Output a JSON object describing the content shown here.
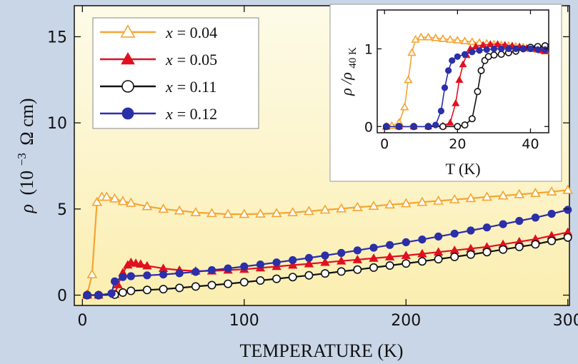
{
  "colors": {
    "background": "#c9d6e8",
    "plot_top": "#fdfbe8",
    "plot_bottom": "#fbeeb0",
    "orange": "#f5a431",
    "red": "#e01020",
    "black": "#111111",
    "blue": "#2b2fa8"
  },
  "chart_data": [
    {
      "type": "line",
      "xlabel": "TEMPERATURE (K)",
      "ylabel_parts": [
        "ρ",
        "(10",
        "−3",
        "Ω cm)"
      ],
      "xlim": [
        -5,
        301
      ],
      "ylim": [
        -0.6,
        16.8
      ],
      "xticks": [
        0,
        100,
        200,
        300
      ],
      "yticks": [
        0,
        5,
        10,
        15
      ],
      "legend_position": "top-left",
      "series": [
        {
          "name": "x = 0.04",
          "var": "x",
          "eq": "= 0.04",
          "color_key": "orange",
          "marker": "open-triangle",
          "x": [
            3,
            6,
            9,
            12,
            15,
            20,
            25,
            30,
            40,
            50,
            60,
            70,
            80,
            90,
            100,
            110,
            120,
            130,
            140,
            150,
            160,
            170,
            180,
            190,
            200,
            210,
            220,
            230,
            240,
            250,
            260,
            270,
            280,
            290,
            300
          ],
          "y": [
            0.05,
            1.2,
            5.4,
            5.7,
            5.7,
            5.6,
            5.45,
            5.35,
            5.15,
            5.0,
            4.9,
            4.8,
            4.75,
            4.7,
            4.7,
            4.72,
            4.75,
            4.8,
            4.87,
            4.95,
            5.02,
            5.1,
            5.17,
            5.25,
            5.32,
            5.4,
            5.47,
            5.55,
            5.62,
            5.7,
            5.77,
            5.85,
            5.92,
            6.0,
            6.1
          ]
        },
        {
          "name": "x = 0.05",
          "var": "x",
          "eq": "= 0.05",
          "color_key": "red",
          "marker": "filled-triangle",
          "x": [
            3,
            10,
            20,
            22,
            25,
            28,
            30,
            33,
            36,
            40,
            50,
            60,
            70,
            80,
            90,
            100,
            110,
            120,
            130,
            140,
            150,
            160,
            170,
            180,
            190,
            200,
            210,
            220,
            230,
            240,
            250,
            260,
            270,
            280,
            290,
            300
          ],
          "y": [
            0.0,
            0.0,
            0.05,
            0.6,
            1.3,
            1.75,
            1.9,
            1.85,
            1.8,
            1.7,
            1.55,
            1.45,
            1.4,
            1.4,
            1.45,
            1.5,
            1.58,
            1.66,
            1.74,
            1.82,
            1.9,
            1.98,
            2.06,
            2.14,
            2.22,
            2.3,
            2.4,
            2.5,
            2.6,
            2.7,
            2.8,
            2.95,
            3.1,
            3.25,
            3.45,
            3.65
          ]
        },
        {
          "name": "x = 0.11",
          "var": "x",
          "eq": "= 0.11",
          "color_key": "black",
          "marker": "open-circle",
          "x": [
            3,
            10,
            20,
            25,
            30,
            40,
            50,
            60,
            70,
            80,
            90,
            100,
            110,
            120,
            130,
            140,
            150,
            160,
            170,
            180,
            190,
            200,
            210,
            220,
            230,
            240,
            250,
            260,
            270,
            280,
            290,
            300
          ],
          "y": [
            0.0,
            0.0,
            0.03,
            0.15,
            0.25,
            0.3,
            0.35,
            0.42,
            0.5,
            0.58,
            0.66,
            0.75,
            0.85,
            0.95,
            1.05,
            1.15,
            1.26,
            1.37,
            1.48,
            1.6,
            1.72,
            1.84,
            1.96,
            2.09,
            2.22,
            2.36,
            2.5,
            2.65,
            2.8,
            2.95,
            3.15,
            3.35
          ]
        },
        {
          "name": "x = 0.12",
          "var": "x",
          "eq": "= 0.12",
          "color_key": "blue",
          "marker": "filled-circle",
          "x": [
            3,
            10,
            18,
            20,
            25,
            30,
            40,
            50,
            60,
            70,
            80,
            90,
            100,
            110,
            120,
            130,
            140,
            150,
            160,
            170,
            180,
            190,
            200,
            210,
            220,
            230,
            240,
            250,
            260,
            270,
            280,
            290,
            300
          ],
          "y": [
            0.0,
            0.0,
            0.1,
            0.8,
            1.05,
            1.1,
            1.15,
            1.2,
            1.27,
            1.35,
            1.45,
            1.55,
            1.66,
            1.78,
            1.9,
            2.03,
            2.16,
            2.3,
            2.45,
            2.6,
            2.75,
            2.91,
            3.07,
            3.23,
            3.4,
            3.57,
            3.75,
            3.93,
            4.12,
            4.31,
            4.5,
            4.72,
            4.95
          ]
        }
      ]
    },
    {
      "type": "line",
      "role": "inset",
      "xlabel": "T (K)",
      "ylabel_parts": [
        "ρ",
        "/ρ",
        "40 K"
      ],
      "xlim": [
        -2,
        45
      ],
      "ylim": [
        -0.08,
        1.5
      ],
      "xticks": [
        0,
        20,
        40
      ],
      "yticks": [
        0,
        1
      ],
      "series": [
        {
          "name": "x = 0.04",
          "color_key": "orange",
          "marker": "open-triangle",
          "x": [
            0.5,
            2,
            4,
            5.5,
            6.5,
            7.5,
            8.5,
            10,
            12,
            14,
            16,
            18,
            20,
            22,
            24,
            26,
            28,
            30,
            32,
            34,
            36,
            38,
            40,
            42,
            44
          ],
          "y": [
            0.0,
            0.01,
            0.05,
            0.25,
            0.6,
            0.95,
            1.12,
            1.15,
            1.15,
            1.14,
            1.13,
            1.12,
            1.11,
            1.1,
            1.09,
            1.08,
            1.07,
            1.06,
            1.05,
            1.04,
            1.03,
            1.02,
            1.0,
            0.99,
            0.97
          ]
        },
        {
          "name": "x = 0.05",
          "color_key": "red",
          "marker": "filled-triangle",
          "x": [
            0.5,
            4,
            8,
            12,
            16,
            18,
            19.5,
            20.5,
            21.5,
            22.5,
            23.5,
            25,
            27,
            29,
            31,
            33,
            35,
            37,
            39,
            41,
            43,
            44
          ],
          "y": [
            0.0,
            0.0,
            0.0,
            0.0,
            0.01,
            0.05,
            0.3,
            0.6,
            0.8,
            0.92,
            1.0,
            1.03,
            1.05,
            1.06,
            1.06,
            1.05,
            1.04,
            1.03,
            1.01,
            1.0,
            0.98,
            0.97
          ]
        },
        {
          "name": "x = 0.11",
          "color_key": "black",
          "marker": "open-circle",
          "x": [
            0.5,
            4,
            8,
            12,
            16,
            20,
            22,
            24,
            25.5,
            26.5,
            27.5,
            28.5,
            30,
            32,
            34,
            36,
            38,
            40,
            42,
            44
          ],
          "y": [
            0.0,
            0.0,
            0.0,
            0.0,
            0.0,
            0.0,
            0.02,
            0.1,
            0.45,
            0.72,
            0.85,
            0.9,
            0.92,
            0.93,
            0.95,
            0.97,
            1.0,
            1.02,
            1.03,
            1.04
          ]
        },
        {
          "name": "x = 0.12",
          "color_key": "blue",
          "marker": "filled-circle",
          "x": [
            0.5,
            4,
            8,
            12,
            14,
            15.5,
            16.5,
            17.5,
            18.5,
            20,
            22,
            24,
            26,
            28,
            30,
            32,
            34,
            36,
            38,
            40,
            42,
            44
          ],
          "y": [
            0.0,
            0.0,
            0.0,
            0.0,
            0.02,
            0.2,
            0.5,
            0.72,
            0.85,
            0.9,
            0.93,
            0.96,
            0.98,
            0.99,
            1.0,
            1.0,
            1.0,
            1.0,
            1.0,
            1.0,
            0.99,
            0.99
          ]
        }
      ]
    }
  ]
}
